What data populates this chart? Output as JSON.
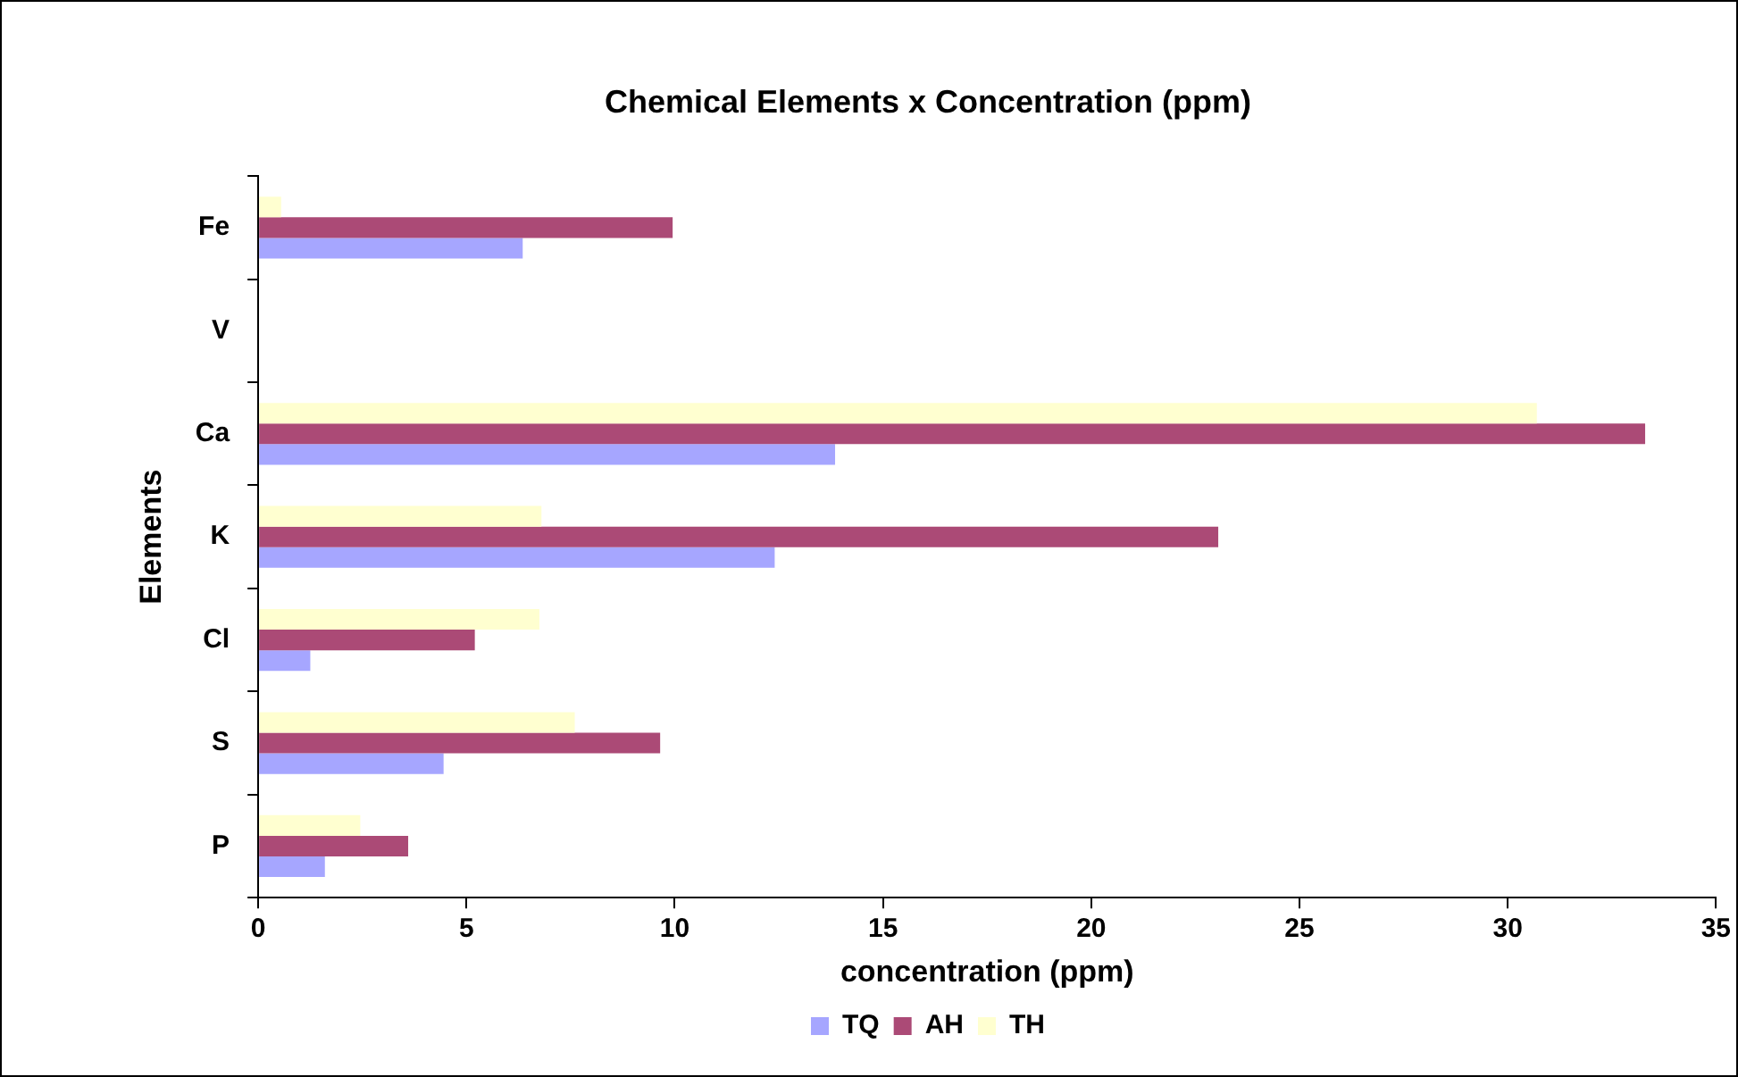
{
  "chart_data": {
    "type": "bar",
    "orientation": "horizontal",
    "title": "Chemical Elements x Concentration (ppm)",
    "xlabel": "concentration (ppm)",
    "ylabel": "Elements",
    "categories": [
      "Fe",
      "V",
      "Ca",
      "K",
      "Cl",
      "S",
      "P"
    ],
    "series": [
      {
        "name": "TQ",
        "color": "#a6a6ff",
        "values": [
          6.35,
          0,
          13.85,
          12.4,
          1.25,
          4.45,
          1.6
        ]
      },
      {
        "name": "AH",
        "color": "#ab4a76",
        "values": [
          9.95,
          0,
          33.3,
          23.05,
          5.2,
          9.65,
          3.6
        ]
      },
      {
        "name": "TH",
        "color": "#ffffd0",
        "values": [
          0.55,
          0,
          30.7,
          6.8,
          6.75,
          7.6,
          2.45
        ]
      }
    ],
    "xlim": [
      0,
      35
    ],
    "xticks": [
      0,
      5,
      10,
      15,
      20,
      25,
      30,
      35
    ],
    "grid": false,
    "legend": "bottom"
  }
}
